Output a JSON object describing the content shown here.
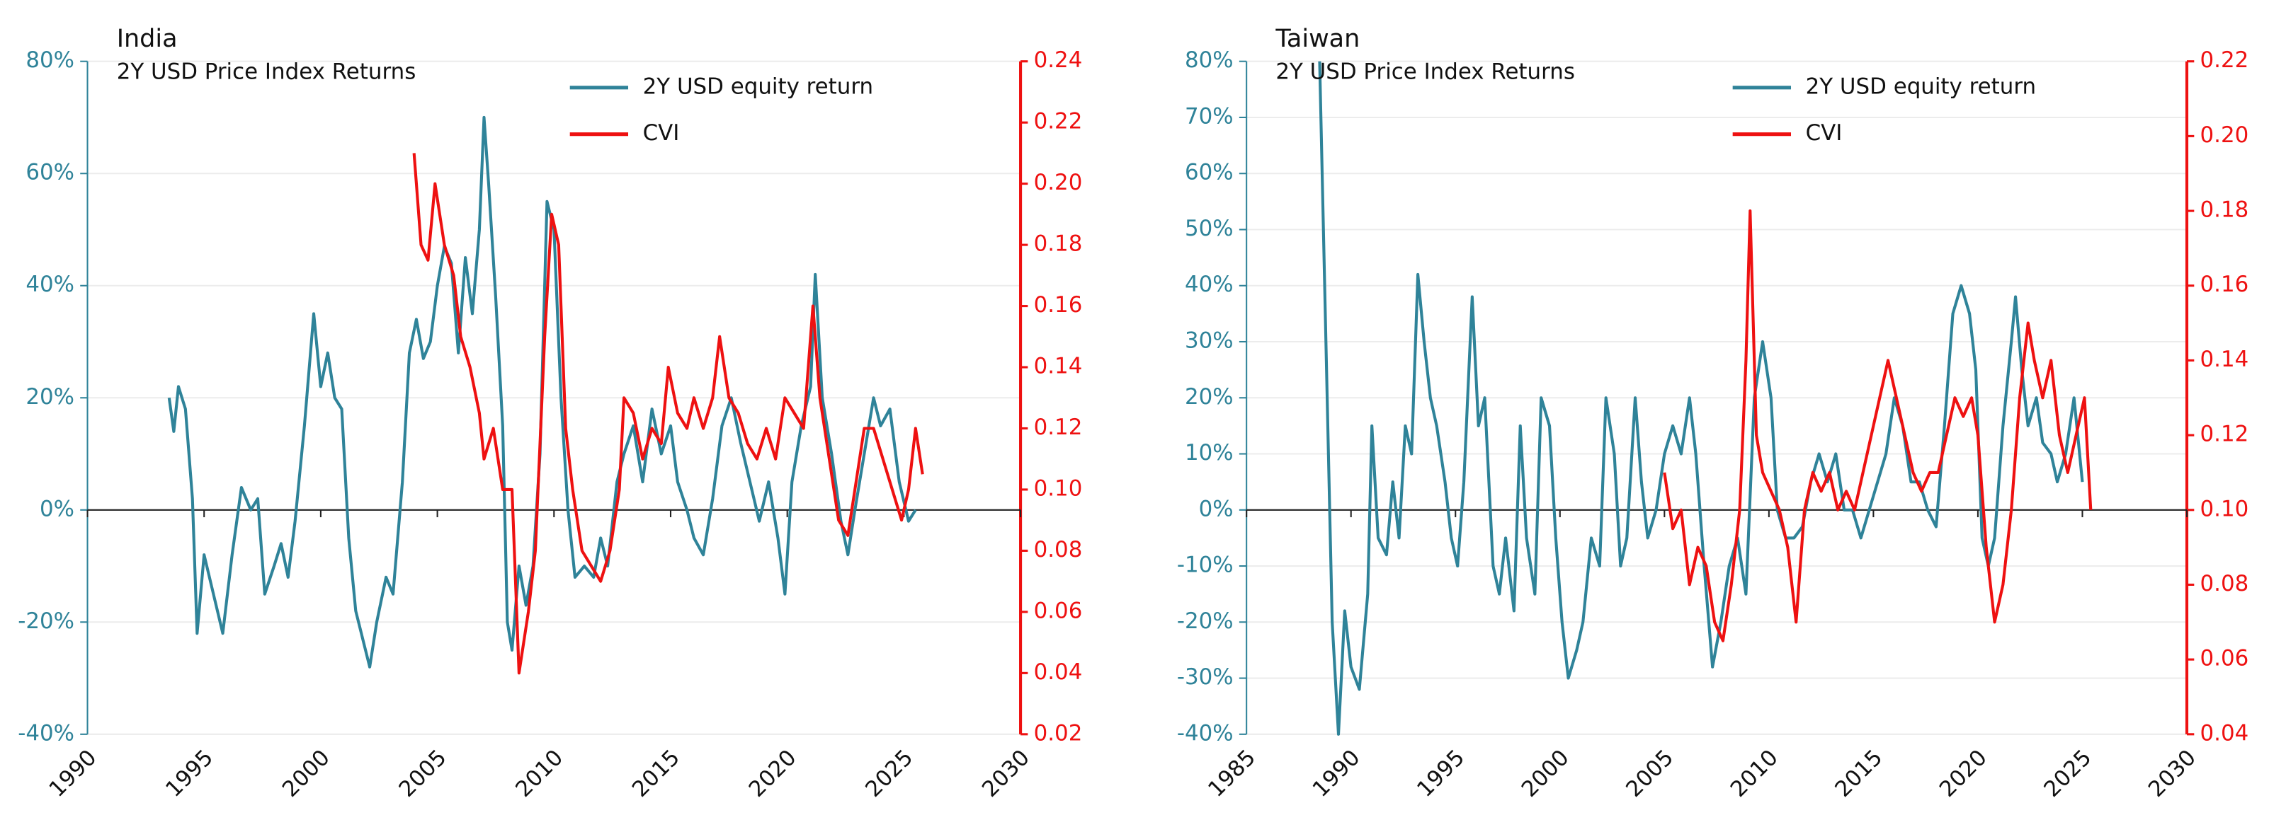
{
  "chart_data": [
    {
      "type": "line",
      "title": "India",
      "subtitle": "2Y USD Price Index Returns",
      "grid": true,
      "legend": "top",
      "xlim": [
        1990,
        2030
      ],
      "xticks": [
        1990,
        1995,
        2000,
        2005,
        2010,
        2015,
        2020,
        2025,
        2030
      ],
      "ylim": [
        -40,
        80
      ],
      "yticks": [
        {
          "value": -40,
          "label": "-40%"
        },
        {
          "value": -20,
          "label": "-20%"
        },
        {
          "value": 0,
          "label": "0%"
        },
        {
          "value": 20,
          "label": "20%"
        },
        {
          "value": 40,
          "label": "40%"
        },
        {
          "value": 60,
          "label": "60%"
        },
        {
          "value": 80,
          "label": "80%"
        }
      ],
      "y2lim": [
        0.02,
        0.24
      ],
      "y2ticks": [
        0.02,
        0.04,
        0.06,
        0.08,
        {
          "value": 0.1,
          "label": "0.10"
        },
        0.12,
        0.14,
        0.16,
        0.18,
        {
          "value": 0.2,
          "label": "0.20"
        },
        0.22,
        0.24
      ],
      "series": [
        {
          "name": "2Y USD equity return",
          "color": "#2f8399",
          "x": [
            1993.5,
            1993.7,
            1993.9,
            1994.2,
            1994.5,
            1994.7,
            1995,
            1995.4,
            1995.8,
            1996.2,
            1996.6,
            1997,
            1997.3,
            1997.6,
            1998,
            1998.3,
            1998.6,
            1998.9,
            1999.3,
            1999.7,
            2000,
            2000.3,
            2000.6,
            2000.9,
            2001.2,
            2001.5,
            2001.8,
            2002.1,
            2002.4,
            2002.8,
            2003.1,
            2003.5,
            2003.8,
            2004.1,
            2004.4,
            2004.7,
            2005,
            2005.3,
            2005.6,
            2005.9,
            2006.2,
            2006.5,
            2006.8,
            2007,
            2007.2,
            2007.5,
            2007.8,
            2008,
            2008.2,
            2008.5,
            2008.8,
            2009.1,
            2009.4,
            2009.7,
            2010,
            2010.3,
            2010.6,
            2010.9,
            2011.3,
            2011.7,
            2012,
            2012.3,
            2012.7,
            2013,
            2013.4,
            2013.8,
            2014.2,
            2014.6,
            2015,
            2015.3,
            2015.7,
            2016,
            2016.4,
            2016.8,
            2017.2,
            2017.6,
            2018,
            2018.4,
            2018.8,
            2019.2,
            2019.6,
            2019.9,
            2020.2,
            2020.6,
            2021,
            2021.2,
            2021.5,
            2021.9,
            2022.3,
            2022.6,
            2022.9,
            2023.3,
            2023.7,
            2024,
            2024.4,
            2024.8,
            2025.2,
            2025.5
          ],
          "values": [
            20,
            14,
            22,
            18,
            2,
            -22,
            -8,
            -15,
            -22,
            -8,
            4,
            0,
            2,
            -15,
            -10,
            -6,
            -12,
            -2,
            15,
            35,
            22,
            28,
            20,
            18,
            -5,
            -18,
            -23,
            -28,
            -20,
            -12,
            -15,
            5,
            28,
            34,
            27,
            30,
            40,
            47,
            44,
            28,
            45,
            35,
            50,
            70,
            58,
            38,
            15,
            -20,
            -25,
            -10,
            -17,
            -10,
            10,
            55,
            50,
            20,
            0,
            -12,
            -10,
            -12,
            -5,
            -10,
            5,
            10,
            15,
            5,
            18,
            10,
            15,
            5,
            0,
            -5,
            -8,
            2,
            15,
            20,
            12,
            5,
            -2,
            5,
            -5,
            -15,
            5,
            15,
            22,
            42,
            20,
            10,
            -2,
            -8,
            0,
            10,
            20,
            15,
            18,
            5,
            -2,
            0
          ]
        },
        {
          "name": "CVI",
          "color": "#ee1111",
          "axis": "y2",
          "x": [
            2004,
            2004.3,
            2004.6,
            2004.9,
            2005.3,
            2005.7,
            2006,
            2006.4,
            2006.8,
            2007,
            2007.4,
            2007.8,
            2008.2,
            2008.5,
            2008.9,
            2009.2,
            2009.6,
            2009.9,
            2010.2,
            2010.5,
            2010.8,
            2011.2,
            2011.6,
            2012,
            2012.4,
            2012.8,
            2013,
            2013.4,
            2013.8,
            2014.2,
            2014.6,
            2014.9,
            2015.3,
            2015.7,
            2016,
            2016.4,
            2016.8,
            2017.1,
            2017.5,
            2017.9,
            2018.3,
            2018.7,
            2019.1,
            2019.5,
            2019.9,
            2020.3,
            2020.7,
            2021.1,
            2021.4,
            2021.8,
            2022.2,
            2022.6,
            2022.9,
            2023.3,
            2023.7,
            2024.1,
            2024.5,
            2024.9,
            2025.2,
            2025.5,
            2025.8
          ],
          "values": [
            0.21,
            0.18,
            0.175,
            0.2,
            0.18,
            0.17,
            0.15,
            0.14,
            0.125,
            0.11,
            0.12,
            0.1,
            0.1,
            0.04,
            0.06,
            0.08,
            0.15,
            0.19,
            0.18,
            0.12,
            0.1,
            0.08,
            0.075,
            0.07,
            0.08,
            0.1,
            0.13,
            0.125,
            0.11,
            0.12,
            0.115,
            0.14,
            0.125,
            0.12,
            0.13,
            0.12,
            0.13,
            0.15,
            0.13,
            0.125,
            0.115,
            0.11,
            0.12,
            0.11,
            0.13,
            0.125,
            0.12,
            0.16,
            0.13,
            0.11,
            0.09,
            0.085,
            0.1,
            0.12,
            0.12,
            0.11,
            0.1,
            0.09,
            0.1,
            0.12,
            0.105
          ]
        }
      ]
    },
    {
      "type": "line",
      "title": "Taiwan",
      "subtitle": "2Y USD Price Index Returns",
      "grid": true,
      "legend": "top",
      "xlim": [
        1985,
        2030
      ],
      "xticks": [
        1985,
        1990,
        1995,
        2000,
        2005,
        2010,
        2015,
        2020,
        2025,
        2030
      ],
      "ylim": [
        -40,
        80
      ],
      "yticks": [
        {
          "value": -40,
          "label": "-40%"
        },
        {
          "value": -30,
          "label": "-30%"
        },
        {
          "value": -20,
          "label": "-20%"
        },
        {
          "value": -10,
          "label": "-10%"
        },
        {
          "value": 0,
          "label": "0%"
        },
        {
          "value": 10,
          "label": "10%"
        },
        {
          "value": 20,
          "label": "20%"
        },
        {
          "value": 30,
          "label": "30%"
        },
        {
          "value": 40,
          "label": "40%"
        },
        {
          "value": 50,
          "label": "50%"
        },
        {
          "value": 60,
          "label": "60%"
        },
        {
          "value": 70,
          "label": "70%"
        },
        {
          "value": 80,
          "label": "80%"
        }
      ],
      "y2lim": [
        0.04,
        0.22
      ],
      "y2ticks": [
        0.04,
        0.06,
        0.08,
        {
          "value": 0.1,
          "label": "0.10"
        },
        0.12,
        0.14,
        0.16,
        0.18,
        {
          "value": 0.2,
          "label": "0.20"
        },
        0.22
      ],
      "series": [
        {
          "name": "2Y USD equity return",
          "color": "#2f8399",
          "x": [
            1988.5,
            1988.8,
            1989.1,
            1989.4,
            1989.7,
            1990,
            1990.4,
            1990.8,
            1991,
            1991.3,
            1991.7,
            1992,
            1992.3,
            1992.6,
            1992.9,
            1993.2,
            1993.5,
            1993.8,
            1994.1,
            1994.5,
            1994.8,
            1995.1,
            1995.4,
            1995.8,
            1996.1,
            1996.4,
            1996.8,
            1997.1,
            1997.4,
            1997.8,
            1998.1,
            1998.4,
            1998.8,
            1999.1,
            1999.5,
            1999.8,
            2000.1,
            2000.4,
            2000.8,
            2001.1,
            2001.5,
            2001.9,
            2002.2,
            2002.6,
            2002.9,
            2003.2,
            2003.6,
            2003.9,
            2004.2,
            2004.6,
            2005,
            2005.4,
            2005.8,
            2006.2,
            2006.5,
            2006.9,
            2007.3,
            2007.7,
            2008.1,
            2008.5,
            2008.9,
            2009.3,
            2009.7,
            2010.1,
            2010.4,
            2010.8,
            2011.2,
            2011.6,
            2012,
            2012.4,
            2012.8,
            2013.2,
            2013.6,
            2014,
            2014.4,
            2014.8,
            2015.2,
            2015.6,
            2016,
            2016.4,
            2016.8,
            2017.2,
            2017.6,
            2018,
            2018.4,
            2018.8,
            2019.2,
            2019.6,
            2019.9,
            2020.2,
            2020.5,
            2020.8,
            2021.2,
            2021.6,
            2021.8,
            2022.1,
            2022.4,
            2022.8,
            2023.1,
            2023.5,
            2023.8,
            2024.2,
            2024.6,
            2025
          ],
          "values": [
            80,
            30,
            -20,
            -40,
            -18,
            -28,
            -32,
            -15,
            15,
            -5,
            -8,
            5,
            -5,
            15,
            10,
            42,
            30,
            20,
            15,
            5,
            -5,
            -10,
            5,
            38,
            15,
            20,
            -10,
            -15,
            -5,
            -18,
            15,
            -5,
            -15,
            20,
            15,
            -5,
            -20,
            -30,
            -25,
            -20,
            -5,
            -10,
            20,
            10,
            -10,
            -5,
            20,
            5,
            -5,
            0,
            10,
            15,
            10,
            20,
            10,
            -10,
            -28,
            -20,
            -10,
            -5,
            -15,
            20,
            30,
            20,
            0,
            -5,
            -5,
            -3,
            5,
            10,
            5,
            10,
            0,
            0,
            -5,
            0,
            5,
            10,
            20,
            15,
            5,
            5,
            0,
            -3,
            15,
            35,
            40,
            35,
            25,
            -5,
            -10,
            -5,
            15,
            30,
            38,
            25,
            15,
            20,
            12,
            10,
            5,
            10,
            20,
            5
          ]
        },
        {
          "name": "CVI",
          "color": "#ee1111",
          "axis": "y2",
          "x": [
            2005,
            2005.4,
            2005.8,
            2006.2,
            2006.6,
            2007,
            2007.4,
            2007.8,
            2008.2,
            2008.6,
            2008.9,
            2009.1,
            2009.4,
            2009.7,
            2010.1,
            2010.5,
            2010.9,
            2011.3,
            2011.7,
            2012.1,
            2012.5,
            2012.9,
            2013.3,
            2013.7,
            2014.1,
            2014.5,
            2014.9,
            2015.3,
            2015.7,
            2016.1,
            2016.5,
            2016.9,
            2017.3,
            2017.7,
            2018.1,
            2018.5,
            2018.9,
            2019.3,
            2019.7,
            2020,
            2020.4,
            2020.8,
            2021.2,
            2021.6,
            2022,
            2022.4,
            2022.7,
            2023.1,
            2023.5,
            2023.9,
            2024.3,
            2024.7,
            2025.1,
            2025.4
          ],
          "values": [
            0.11,
            0.095,
            0.1,
            0.08,
            0.09,
            0.085,
            0.07,
            0.065,
            0.08,
            0.1,
            0.14,
            0.18,
            0.12,
            0.11,
            0.105,
            0.1,
            0.09,
            0.07,
            0.1,
            0.11,
            0.105,
            0.11,
            0.1,
            0.105,
            0.1,
            0.11,
            0.12,
            0.13,
            0.14,
            0.13,
            0.12,
            0.11,
            0.105,
            0.11,
            0.11,
            0.12,
            0.13,
            0.125,
            0.13,
            0.12,
            0.09,
            0.07,
            0.08,
            0.1,
            0.13,
            0.15,
            0.14,
            0.13,
            0.14,
            0.12,
            0.11,
            0.12,
            0.13,
            0.1
          ]
        }
      ]
    }
  ]
}
